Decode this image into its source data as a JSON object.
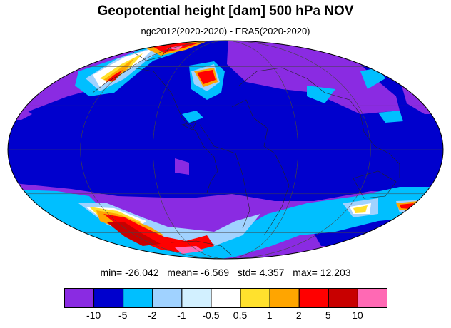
{
  "title": "Geopotential height [dam] 500 hPa NOV",
  "subtitle": "ngc2012(2020-2020) - ERA5(2020-2020)",
  "stats": {
    "min_label": "min=",
    "min": "-26.042",
    "mean_label": "mean=",
    "mean": "-6.569",
    "std_label": "std=",
    "std": "4.357",
    "max_label": "max=",
    "max": "12.203"
  },
  "colorbar": {
    "labels": [
      "-10",
      "-5",
      "-2",
      "-1",
      "-0.5",
      "0.5",
      "1",
      "2",
      "5",
      "10"
    ],
    "colors": [
      "#8a2be2",
      "#0000cd",
      "#00bfff",
      "#a0d2ff",
      "#d2f0ff",
      "#ffffff",
      "#ffe12d",
      "#ffa500",
      "#ff0000",
      "#c80000",
      "#ff69b4"
    ]
  },
  "map": {
    "projection": "mollweide",
    "background_color": "#0000cd"
  }
}
